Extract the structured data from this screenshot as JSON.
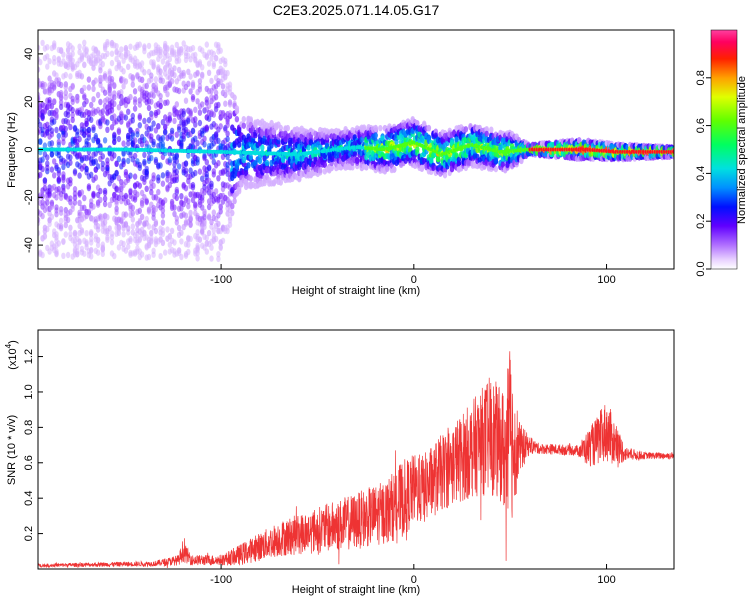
{
  "figure": {
    "title": "C2E3.2025.071.14.05.G17"
  },
  "chart_data": [
    {
      "type": "heatmap",
      "title": "C2E3.2025.071.14.05.G17",
      "xlabel": "Height of straight line (km)",
      "ylabel": "Frequency (Hz)",
      "xlim": [
        -195,
        135
      ],
      "ylim": [
        -50,
        50
      ],
      "x_ticks": [
        -100,
        0,
        100
      ],
      "y_ticks": [
        -40,
        -20,
        0,
        20,
        40
      ],
      "colorbar": {
        "label": "Normalized spectral amplitude",
        "range": [
          0,
          1
        ],
        "ticks": [
          "0.0",
          "0.2",
          "0.4",
          "0.6",
          "0.8"
        ]
      },
      "ridge_frequency_hz": [
        {
          "x": -190,
          "y": 0
        },
        {
          "x": -150,
          "y": 0
        },
        {
          "x": -100,
          "y": -1
        },
        {
          "x": -60,
          "y": -2
        },
        {
          "x": -30,
          "y": 1
        },
        {
          "x": -15,
          "y": 0
        },
        {
          "x": 0,
          "y": 3
        },
        {
          "x": 15,
          "y": -2
        },
        {
          "x": 30,
          "y": 2
        },
        {
          "x": 45,
          "y": -1
        },
        {
          "x": 60,
          "y": 0
        },
        {
          "x": 90,
          "y": 0
        },
        {
          "x": 105,
          "y": -1
        },
        {
          "x": 135,
          "y": -1
        }
      ],
      "spread_hz": [
        {
          "x": -190,
          "y": 45
        },
        {
          "x": -100,
          "y": 45
        },
        {
          "x": -90,
          "y": 15
        },
        {
          "x": -40,
          "y": 8
        },
        {
          "x": 0,
          "y": 10
        },
        {
          "x": 50,
          "y": 8
        },
        {
          "x": 60,
          "y": 2
        },
        {
          "x": 85,
          "y": 4
        },
        {
          "x": 110,
          "y": 3
        },
        {
          "x": 135,
          "y": 2
        }
      ],
      "grid": false
    },
    {
      "type": "line",
      "xlabel": "Height of straight line (km)",
      "ylabel": "SNR (10 * v/v)",
      "y_multiplier": "(x10",
      "y_multiplier_exp": "4",
      "y_multiplier_close": ")",
      "xlim": [
        -195,
        135
      ],
      "ylim": [
        0,
        1.35
      ],
      "x_ticks": [
        -100,
        0,
        100
      ],
      "y_ticks": [
        "0.2",
        "0.4",
        "0.6",
        "0.8",
        "1.0",
        "1.2"
      ],
      "series": [
        {
          "color": "#ee3333",
          "envelope_x": [
            -195,
            -135,
            -122,
            -120,
            -115,
            -100,
            -90,
            -70,
            -50,
            -30,
            -15,
            -5,
            0,
            5,
            15,
            25,
            35,
            40,
            45,
            48,
            50,
            52,
            55,
            60,
            65,
            85,
            90,
            95,
            100,
            105,
            110,
            120,
            135
          ],
          "envelope_mean": [
            0.02,
            0.03,
            0.05,
            0.1,
            0.05,
            0.05,
            0.08,
            0.17,
            0.22,
            0.27,
            0.32,
            0.4,
            0.45,
            0.45,
            0.55,
            0.63,
            0.72,
            0.75,
            0.7,
            0.65,
            0.75,
            0.7,
            0.68,
            0.7,
            0.68,
            0.67,
            0.68,
            0.72,
            0.78,
            0.7,
            0.65,
            0.64,
            0.64
          ],
          "envelope_amp": [
            0.01,
            0.015,
            0.03,
            0.06,
            0.03,
            0.03,
            0.06,
            0.1,
            0.13,
            0.16,
            0.18,
            0.22,
            0.2,
            0.2,
            0.22,
            0.25,
            0.3,
            0.35,
            0.32,
            0.4,
            0.55,
            0.35,
            0.15,
            0.05,
            0.03,
            0.03,
            0.1,
            0.14,
            0.18,
            0.12,
            0.04,
            0.02,
            0.02
          ]
        }
      ],
      "grid": false
    }
  ]
}
